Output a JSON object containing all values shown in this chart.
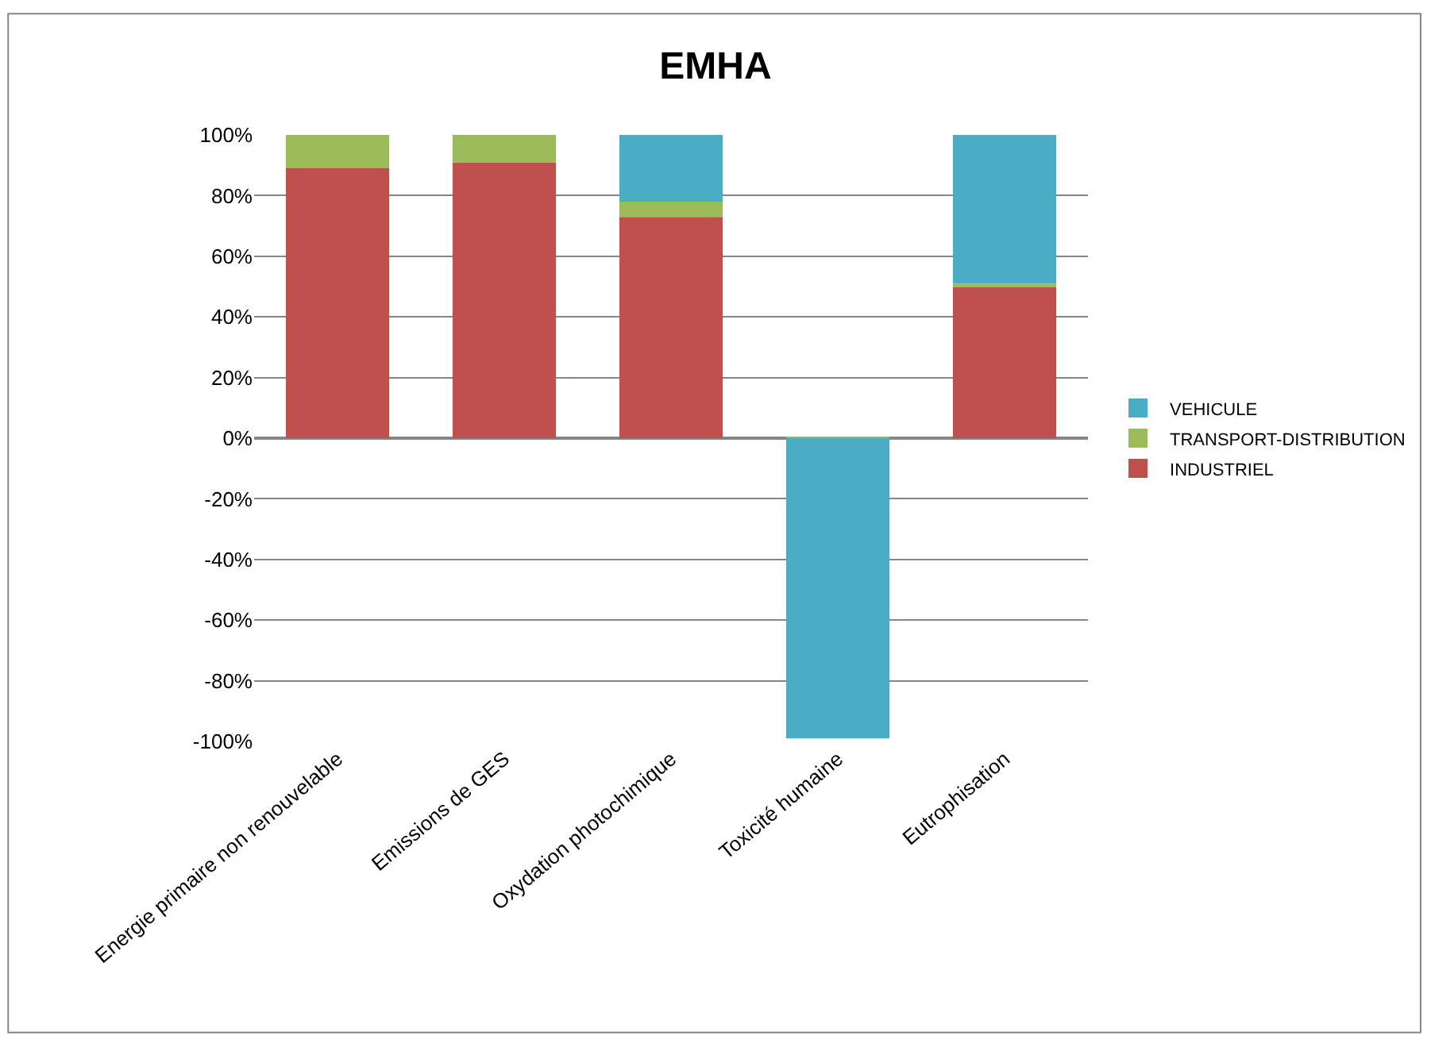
{
  "chart_data": {
    "type": "bar",
    "title": "EMHA",
    "stacked": true,
    "categories": [
      "Energie primaire non renouvelable",
      "Emissions de GES",
      "Oxydation photochimique",
      "Toxicité humaine",
      "Eutrophisation"
    ],
    "series": [
      {
        "name": "INDUSTRIEL",
        "color": "#c0504d",
        "values": [
          89,
          91,
          73,
          0,
          50
        ]
      },
      {
        "name": "TRANSPORT-DISTRIBUTION",
        "color": "#9bbb59",
        "values": [
          11,
          9,
          5,
          0.5,
          1
        ]
      },
      {
        "name": "VEHICULE",
        "color": "#4bacc6",
        "values": [
          0,
          0,
          22,
          -99,
          49
        ]
      }
    ],
    "ylim": [
      -100,
      100
    ],
    "yticks": [
      {
        "value": -100,
        "label": "-100%"
      },
      {
        "value": -80,
        "label": "-80%"
      },
      {
        "value": -60,
        "label": "-60%"
      },
      {
        "value": -40,
        "label": "-40%"
      },
      {
        "value": -20,
        "label": "-20%"
      },
      {
        "value": 0,
        "label": "0%"
      },
      {
        "value": 20,
        "label": "20%"
      },
      {
        "value": 40,
        "label": "40%"
      },
      {
        "value": 60,
        "label": "60%"
      },
      {
        "value": 80,
        "label": "80%"
      },
      {
        "value": 100,
        "label": "100%"
      }
    ],
    "grid": "y",
    "legend": "right"
  }
}
